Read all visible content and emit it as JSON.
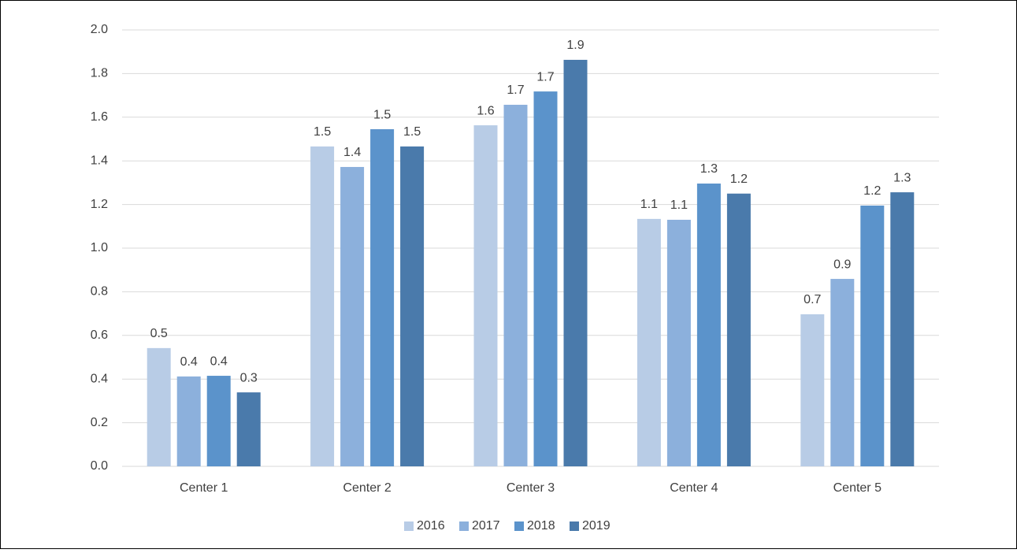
{
  "chart_data": {
    "type": "bar",
    "categories": [
      "Center 1",
      "Center 2",
      "Center 3",
      "Center 4",
      "Center 5"
    ],
    "series": [
      {
        "name": "2016",
        "color": "#b8cce6",
        "values": [
          0.542,
          1.466,
          1.563,
          1.134,
          0.697
        ],
        "value_labels": [
          "0.5",
          "1.5",
          "1.6",
          "1.1",
          "0.7"
        ]
      },
      {
        "name": "2017",
        "color": "#8cb0dc",
        "values": [
          0.412,
          1.372,
          1.657,
          1.13,
          0.859
        ],
        "value_labels": [
          "0.4",
          "1.4",
          "1.7",
          "1.1",
          "0.9"
        ]
      },
      {
        "name": "2018",
        "color": "#5b93cb",
        "values": [
          0.415,
          1.545,
          1.718,
          1.296,
          1.195
        ],
        "value_labels": [
          "0.4",
          "1.5",
          "1.7",
          "1.3",
          "1.2"
        ]
      },
      {
        "name": "2019",
        "color": "#4a7aab",
        "values": [
          0.339,
          1.466,
          1.863,
          1.25,
          1.256
        ],
        "value_labels": [
          "0.3",
          "1.5",
          "1.9",
          "1.2",
          "1.3"
        ]
      }
    ],
    "ylim": [
      0,
      2
    ],
    "yticks": [
      {
        "value": 0,
        "label": "0.0"
      },
      0.2,
      0.4,
      0.6,
      0.8,
      {
        "value": 1,
        "label": "1.0"
      },
      1.2,
      1.4,
      1.6,
      1.8,
      {
        "value": 2,
        "label": "2.0"
      }
    ],
    "grid": true,
    "legend": "bottom"
  }
}
